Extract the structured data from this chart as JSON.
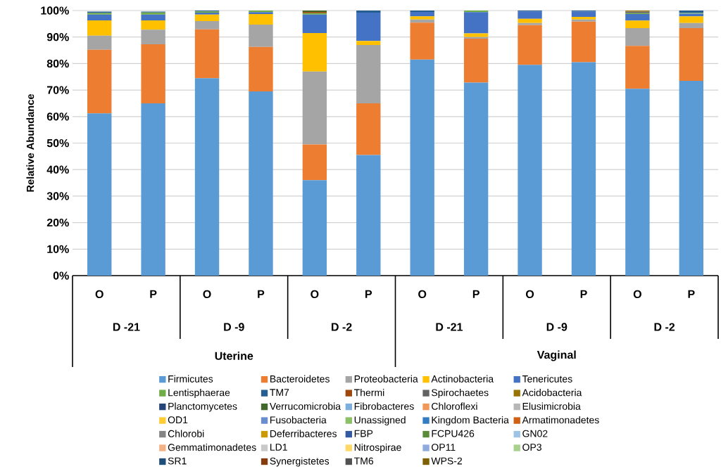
{
  "chart_data": {
    "type": "bar",
    "stacked": true,
    "ylabel": "Relative Abundance",
    "categories": [
      "O",
      "P",
      "O",
      "P",
      "O",
      "P",
      "O",
      "P",
      "O",
      "P",
      "O",
      "P"
    ],
    "annotations": [
      "D -21",
      "D -9",
      "D -2",
      "D -21",
      "D -9",
      "D -2",
      "Uterine",
      "Vaginal"
    ],
    "ylim": [
      0,
      100
    ],
    "yticks": [
      {
        "value": 0,
        "label": "0%"
      },
      {
        "value": 10,
        "label": "10%"
      },
      {
        "value": 20,
        "label": "20%"
      },
      {
        "value": 30,
        "label": "30%"
      },
      {
        "value": 40,
        "label": "40%"
      },
      {
        "value": 50,
        "label": "50%"
      },
      {
        "value": 60,
        "label": "60%"
      },
      {
        "value": 70,
        "label": "70%"
      },
      {
        "value": 80,
        "label": "80%"
      },
      {
        "value": 90,
        "label": "90%"
      },
      {
        "value": 100,
        "label": "100%"
      }
    ],
    "grid": "y",
    "legend": "bottom",
    "series": [
      {
        "name": "Firmicutes",
        "color": "#5b9bd5",
        "values": [
          61.2,
          65,
          74.5,
          69.5,
          36,
          45.5,
          81.5,
          72.8,
          79.5,
          80.5,
          70.5,
          73.5
        ]
      },
      {
        "name": "Bacteroidetes",
        "color": "#ed7d31",
        "values": [
          24,
          22.3,
          18.4,
          16.8,
          13.5,
          19.5,
          13.9,
          16.6,
          15,
          15.3,
          16.2,
          19.9
        ]
      },
      {
        "name": "Proteobacteria",
        "color": "#a5a5a5",
        "values": [
          5.3,
          5.5,
          3.1,
          8.4,
          27.5,
          22,
          1.2,
          0.6,
          0.8,
          0.8,
          6.7,
          1.9
        ]
      },
      {
        "name": "Actinobacteria",
        "color": "#ffc000",
        "values": [
          5.8,
          3.5,
          2.5,
          4,
          14.5,
          1.5,
          1.2,
          1.4,
          1.6,
          1,
          2.8,
          2.5
        ]
      },
      {
        "name": "Tenericutes",
        "color": "#4472c4",
        "values": [
          2.2,
          2.2,
          0.7,
          0.7,
          7,
          10.7,
          1.7,
          8,
          2.8,
          2,
          2.5,
          1
        ]
      },
      {
        "name": "Lentisphaerae",
        "color": "#70ad47",
        "values": [
          0.6,
          0.8,
          0.5,
          0.6,
          0.5,
          0,
          0,
          0.6,
          0,
          0,
          0.3,
          0.3
        ]
      },
      {
        "name": "TM7",
        "color": "#255e91",
        "values": [
          0.5,
          0.3,
          0.3,
          0,
          0,
          0.8,
          0.5,
          0,
          0.3,
          0.4,
          0,
          0.9
        ]
      },
      {
        "name": "Thermi",
        "color": "#9e480e",
        "values": [
          0,
          0,
          0,
          0,
          0.5,
          0,
          0,
          0,
          0,
          0,
          0,
          0
        ]
      },
      {
        "name": "Spirochaetes",
        "color": "#636363",
        "values": [
          0,
          0,
          0,
          0,
          0,
          0,
          0,
          0,
          0,
          0,
          0.6,
          0
        ]
      },
      {
        "name": "Acidobacteria",
        "color": "#997300",
        "values": [
          0,
          0,
          0,
          0,
          0,
          0,
          0,
          0,
          0,
          0,
          0.4,
          0
        ]
      },
      {
        "name": "Planctomycetes",
        "color": "#264478",
        "values": [
          0,
          0,
          0,
          0,
          0,
          0,
          0,
          0,
          0,
          0,
          0,
          0
        ]
      },
      {
        "name": "Verrucomicrobia",
        "color": "#43682b",
        "values": [
          0,
          0,
          0,
          0,
          0.5,
          0,
          0,
          0,
          0,
          0,
          0,
          0
        ]
      },
      {
        "name": "Fibrobacteres",
        "color": "#7cafdd",
        "values": [
          0,
          0,
          0,
          0,
          0,
          0,
          0,
          0,
          0,
          0,
          0,
          0
        ]
      },
      {
        "name": "Chloroflexi",
        "color": "#f1975a",
        "values": [
          0,
          0,
          0,
          0,
          0,
          0,
          0,
          0,
          0,
          0,
          0,
          0
        ]
      },
      {
        "name": "Elusimicrobia",
        "color": "#b7b7b7",
        "values": [
          0,
          0,
          0,
          0,
          0,
          0,
          0,
          0,
          0,
          0,
          0,
          0
        ]
      },
      {
        "name": "OD1",
        "color": "#ffcd33",
        "values": [
          0,
          0,
          0,
          0,
          0,
          0,
          0,
          0,
          0,
          0,
          0,
          0
        ]
      },
      {
        "name": "Fusobacteria",
        "color": "#698ed0",
        "values": [
          0,
          0,
          0,
          0,
          0,
          0,
          0,
          0,
          0,
          0,
          0,
          0
        ]
      },
      {
        "name": "Unassigned",
        "color": "#8cc168",
        "values": [
          0,
          0,
          0,
          0,
          0,
          0,
          0,
          0,
          0,
          0,
          0,
          0
        ]
      },
      {
        "name": "Kingdom Bacteria",
        "color": "#327dc2",
        "values": [
          0,
          0,
          0,
          0,
          0,
          0,
          0,
          0,
          0,
          0,
          0,
          0
        ]
      },
      {
        "name": "Armatimonadetes",
        "color": "#d26012",
        "values": [
          0,
          0,
          0,
          0,
          0,
          0,
          0,
          0,
          0,
          0,
          0,
          0
        ]
      },
      {
        "name": "Chlorobi",
        "color": "#848484",
        "values": [
          0,
          0,
          0,
          0,
          0,
          0,
          0,
          0,
          0,
          0,
          0,
          0
        ]
      },
      {
        "name": "Deferribacteres",
        "color": "#cc9a00",
        "values": [
          0,
          0,
          0,
          0,
          0,
          0,
          0,
          0,
          0,
          0,
          0,
          0
        ]
      },
      {
        "name": "FBP",
        "color": "#335aa1",
        "values": [
          0,
          0,
          0,
          0,
          0,
          0,
          0,
          0,
          0,
          0,
          0,
          0
        ]
      },
      {
        "name": "FCPU426",
        "color": "#5a8b39",
        "values": [
          0,
          0,
          0,
          0,
          0,
          0,
          0,
          0,
          0,
          0,
          0,
          0
        ]
      },
      {
        "name": "GN02",
        "color": "#9dc3e6",
        "values": [
          0,
          0,
          0,
          0,
          0,
          0,
          0,
          0,
          0,
          0,
          0,
          0
        ]
      },
      {
        "name": "Gemmatimonadetes",
        "color": "#f4b183",
        "values": [
          0,
          0,
          0,
          0,
          0,
          0,
          0,
          0,
          0,
          0,
          0,
          0
        ]
      },
      {
        "name": "LD1",
        "color": "#c9c9c9",
        "values": [
          0,
          0,
          0,
          0,
          0,
          0,
          0,
          0,
          0,
          0,
          0,
          0
        ]
      },
      {
        "name": "Nitrospirae",
        "color": "#ffd966",
        "values": [
          0,
          0,
          0,
          0,
          0,
          0,
          0,
          0,
          0,
          0,
          0,
          0
        ]
      },
      {
        "name": "OP11",
        "color": "#8faadc",
        "values": [
          0,
          0,
          0,
          0,
          0,
          0,
          0,
          0,
          0,
          0,
          0,
          0
        ]
      },
      {
        "name": "OP3",
        "color": "#a9d18e",
        "values": [
          0,
          0,
          0,
          0,
          0,
          0,
          0,
          0,
          0,
          0,
          0,
          0
        ]
      },
      {
        "name": "SR1",
        "color": "#1f4e79",
        "values": [
          0,
          0,
          0,
          0,
          0,
          0,
          0,
          0,
          0,
          0,
          0,
          0
        ]
      },
      {
        "name": "Synergistetes",
        "color": "#843c0c",
        "values": [
          0,
          0,
          0,
          0,
          0,
          0,
          0,
          0,
          0,
          0,
          0,
          0
        ]
      },
      {
        "name": "TM6",
        "color": "#525252",
        "values": [
          0,
          0,
          0,
          0,
          0,
          0,
          0,
          0,
          0,
          0,
          0,
          0
        ]
      },
      {
        "name": "WPS-2",
        "color": "#7f6000",
        "values": [
          0,
          0,
          0,
          0,
          0,
          0,
          0,
          0,
          0,
          0,
          0,
          0
        ]
      }
    ]
  }
}
